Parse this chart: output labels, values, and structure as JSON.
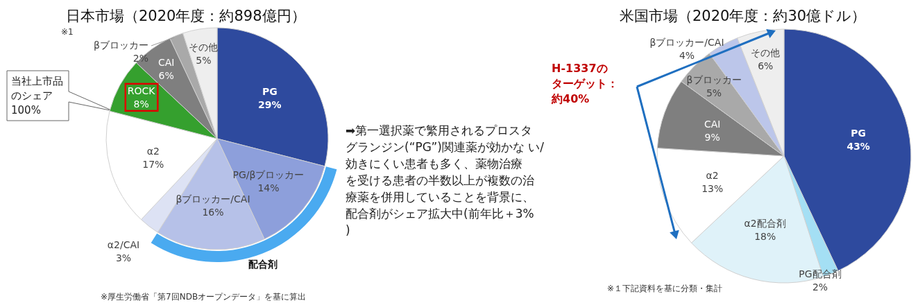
{
  "chart_data": [
    {
      "type": "pie",
      "title": "日本市場（2020年度：約898億円）",
      "categories": [
        "PG",
        "PG/βブロッカー",
        "βブロッカー/CAI",
        "α2/CAI",
        "α2",
        "ROCK",
        "CAI",
        "βブロッカー",
        "その他"
      ],
      "values": [
        29,
        14,
        16,
        3,
        17,
        8,
        6,
        2,
        5
      ],
      "value_labels": [
        "29%",
        "14%",
        "16%",
        "3%",
        "17%",
        "8%",
        "6%",
        "2%",
        "5%"
      ],
      "colors": [
        "#2e4a9e",
        "#8d9fdb",
        "#b6c1e8",
        "#dde2f4",
        "#ffffff",
        "#35a02e",
        "#7f7f7f",
        "#a9a9a9",
        "#eeeeee"
      ],
      "data_labels": true,
      "annotations": [
        "※1",
        "当社上市品のシェア100%",
        "配合剤",
        "➡第一選択薬で繁用されるプロスタグランジン(“PG”)関連薬が効かな い/効きにくい患者も多く、薬物治療を受ける患者の半数以上が複数の治療薬を併用していることを背景に、配合剤がシェア拡大中(前年比＋3%)",
        "※厚生労働省「第7回NDBオープンデータ」を基に算出"
      ]
    },
    {
      "type": "pie",
      "title": "米国市場（2020年度：約30億ドル）",
      "categories": [
        "PG",
        "PG配合剤",
        "α2配合剤",
        "α2",
        "CAI",
        "βブロッカー",
        "βブロッカー/CAI",
        "その他"
      ],
      "values": [
        43,
        2,
        18,
        13,
        9,
        5,
        4,
        6
      ],
      "value_labels": [
        "43%",
        "2%",
        "18%",
        "13%",
        "9%",
        "5%",
        "4%",
        "6%"
      ],
      "colors": [
        "#2e4a9e",
        "#a4dff4",
        "#dff2f9",
        "#ffffff",
        "#7f7f7f",
        "#a9a9a9",
        "#bcc6ea",
        "#eeeeee"
      ],
      "data_labels": true,
      "annotations": [
        "H-1337のターゲット：約40%",
        "※１下記資料を基に分類・集計"
      ]
    }
  ]
}
